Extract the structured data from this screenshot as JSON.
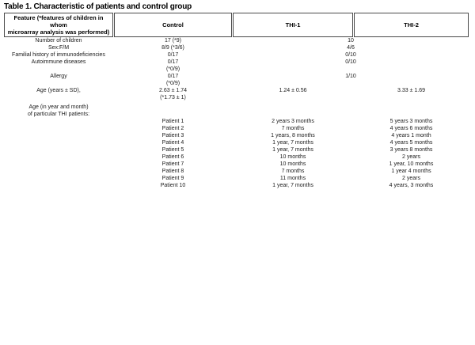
{
  "page": {
    "background": "#ffffff",
    "text_color": "#1a1a1a",
    "header_border_color": "#4a4a4a"
  },
  "title": "Table 1. Characteristic of patients and control group",
  "table": {
    "columns": [
      {
        "text": "Feature (*features of children in whom\nmicroarray analysis was performed)"
      },
      {
        "text": "Control"
      },
      {
        "text": "THI-1"
      },
      {
        "text": "THI-2"
      }
    ],
    "rows": [
      {
        "cells": [
          {
            "text": "Number of children"
          },
          {
            "text": "17 (*9)"
          },
          {
            "text": "10",
            "colspan": 2
          }
        ]
      },
      {
        "cells": [
          {
            "text": "Sex:F/M"
          },
          {
            "text": "8/9 (*3/6)"
          },
          {
            "text": "4/6",
            "colspan": 2
          }
        ]
      },
      {
        "cells": [
          {
            "text": "Familial history of immunodeficiencies"
          },
          {
            "text": "0/17"
          },
          {
            "text": "0/10",
            "colspan": 2
          }
        ]
      },
      {
        "cells": [
          {
            "text": "Autoimmune diseases"
          },
          {
            "text": "0/17"
          },
          {
            "text": "0/10",
            "colspan": 2
          }
        ]
      },
      {
        "cells": [
          {
            "text": ""
          },
          {
            "text": "(*0/9)"
          },
          {
            "text": "",
            "colspan": 2
          }
        ]
      },
      {
        "cells": [
          {
            "text": "Allergy"
          },
          {
            "text": "0/17"
          },
          {
            "text": "1/10",
            "colspan": 2
          }
        ]
      },
      {
        "cells": [
          {
            "text": ""
          },
          {
            "text": "(*0/9)"
          },
          {
            "text": "",
            "colspan": 2
          }
        ]
      },
      {
        "cells": [
          {
            "text": "Age (years ± SD),"
          },
          {
            "text": "2.63 ± 1.74"
          },
          {
            "text": "1.24 ± 0.56"
          },
          {
            "text": "3.33 ± 1.69"
          }
        ]
      },
      {
        "cells": [
          {
            "text": ""
          },
          {
            "text": "(*1.73 ± 1)"
          },
          {
            "text": ""
          },
          {
            "text": ""
          }
        ]
      },
      {
        "spacer": true
      },
      {
        "cells": [
          {
            "text": "Age (in year and month)"
          },
          {
            "text": ""
          },
          {
            "text": ""
          },
          {
            "text": ""
          }
        ]
      },
      {
        "cells": [
          {
            "text": "of particular THI patients:"
          },
          {
            "text": ""
          },
          {
            "text": ""
          },
          {
            "text": ""
          }
        ]
      },
      {
        "cells": [
          {
            "text": ""
          },
          {
            "text": "Patient 1"
          },
          {
            "text": "2 years 3 months"
          },
          {
            "text": "5 years 3 months"
          }
        ]
      },
      {
        "cells": [
          {
            "text": ""
          },
          {
            "text": "Patient 2"
          },
          {
            "text": "7 months"
          },
          {
            "text": "4 years 6 months"
          }
        ]
      },
      {
        "cells": [
          {
            "text": ""
          },
          {
            "text": "Patient 3"
          },
          {
            "text": "1 years, 8 months"
          },
          {
            "text": "4 years 1 month"
          }
        ]
      },
      {
        "cells": [
          {
            "text": ""
          },
          {
            "text": "Patient 4"
          },
          {
            "text": "1 year, 7 months"
          },
          {
            "text": "4 years 5 months"
          }
        ]
      },
      {
        "cells": [
          {
            "text": ""
          },
          {
            "text": "Patient 5"
          },
          {
            "text": "1 year, 7 months"
          },
          {
            "text": "3 years 8 months"
          }
        ]
      },
      {
        "cells": [
          {
            "text": ""
          },
          {
            "text": "Patient 6"
          },
          {
            "text": "10 months"
          },
          {
            "text": "2 years"
          }
        ]
      },
      {
        "cells": [
          {
            "text": ""
          },
          {
            "text": "Patient 7"
          },
          {
            "text": "10 months"
          },
          {
            "text": "1 year, 10 months"
          }
        ]
      },
      {
        "cells": [
          {
            "text": ""
          },
          {
            "text": "Patient 8"
          },
          {
            "text": "7 months"
          },
          {
            "text": "1 year 4 months"
          }
        ]
      },
      {
        "cells": [
          {
            "text": ""
          },
          {
            "text": "Patient 9"
          },
          {
            "text": "11 months"
          },
          {
            "text": "2 years"
          }
        ]
      },
      {
        "cells": [
          {
            "text": ""
          },
          {
            "text": "Patient 10"
          },
          {
            "text": "1 year, 7 months"
          },
          {
            "text": "4 years, 3 months"
          }
        ]
      }
    ]
  }
}
